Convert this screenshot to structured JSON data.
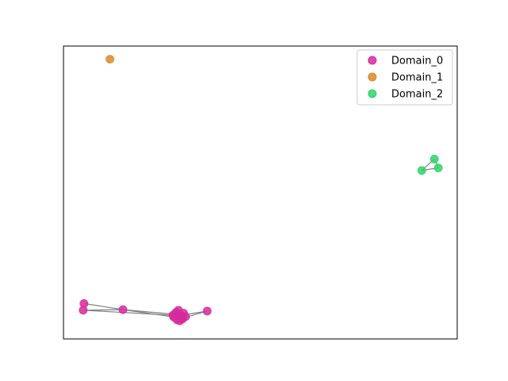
{
  "chart_data": {
    "type": "scatter",
    "title": "",
    "xlabel": "",
    "ylabel": "",
    "xlim": [
      0,
      100
    ],
    "ylim": [
      0,
      100
    ],
    "grid": false,
    "legend_placement": "top-right",
    "series": [
      {
        "name": "Domain_0",
        "color": "#d62a9c",
        "points": [
          [
            5.2,
            12.1
          ],
          [
            5.0,
            9.8
          ],
          [
            15.1,
            10.0
          ],
          [
            36.5,
            9.5
          ],
          [
            28.0,
            7.5
          ],
          [
            29.0,
            8.5
          ],
          [
            30.0,
            7.0
          ],
          [
            28.5,
            9.0
          ],
          [
            29.5,
            6.2
          ],
          [
            30.5,
            8.8
          ],
          [
            31.0,
            7.6
          ],
          [
            27.8,
            8.1
          ],
          [
            29.2,
            9.8
          ],
          [
            30.2,
            6.8
          ],
          [
            28.8,
            6.6
          ],
          [
            29.8,
            8.0
          ]
        ]
      },
      {
        "name": "Domain_1",
        "color": "#d98a2a",
        "points": [
          [
            11.8,
            95.5
          ]
        ]
      },
      {
        "name": "Domain_2",
        "color": "#2fd36b",
        "points": [
          [
            94.2,
            61.4
          ],
          [
            95.2,
            58.4
          ],
          [
            91.0,
            57.5
          ]
        ]
      }
    ],
    "edges": [
      [
        [
          5.2,
          12.1
        ],
        [
          15.1,
          10.0
        ]
      ],
      [
        [
          5.0,
          9.8
        ],
        [
          15.1,
          10.0
        ]
      ],
      [
        [
          15.1,
          10.0
        ],
        [
          28.0,
          7.5
        ]
      ],
      [
        [
          15.1,
          10.0
        ],
        [
          30.0,
          8.2
        ]
      ],
      [
        [
          5.0,
          9.8
        ],
        [
          29.0,
          8.0
        ]
      ],
      [
        [
          29.5,
          8.0
        ],
        [
          36.5,
          9.5
        ]
      ],
      [
        [
          30.5,
          7.2
        ],
        [
          36.5,
          9.5
        ]
      ],
      [
        [
          94.2,
          61.4
        ],
        [
          95.2,
          58.4
        ]
      ],
      [
        [
          94.2,
          61.4
        ],
        [
          91.0,
          57.5
        ]
      ],
      [
        [
          95.2,
          58.4
        ],
        [
          91.0,
          57.5
        ]
      ]
    ]
  }
}
